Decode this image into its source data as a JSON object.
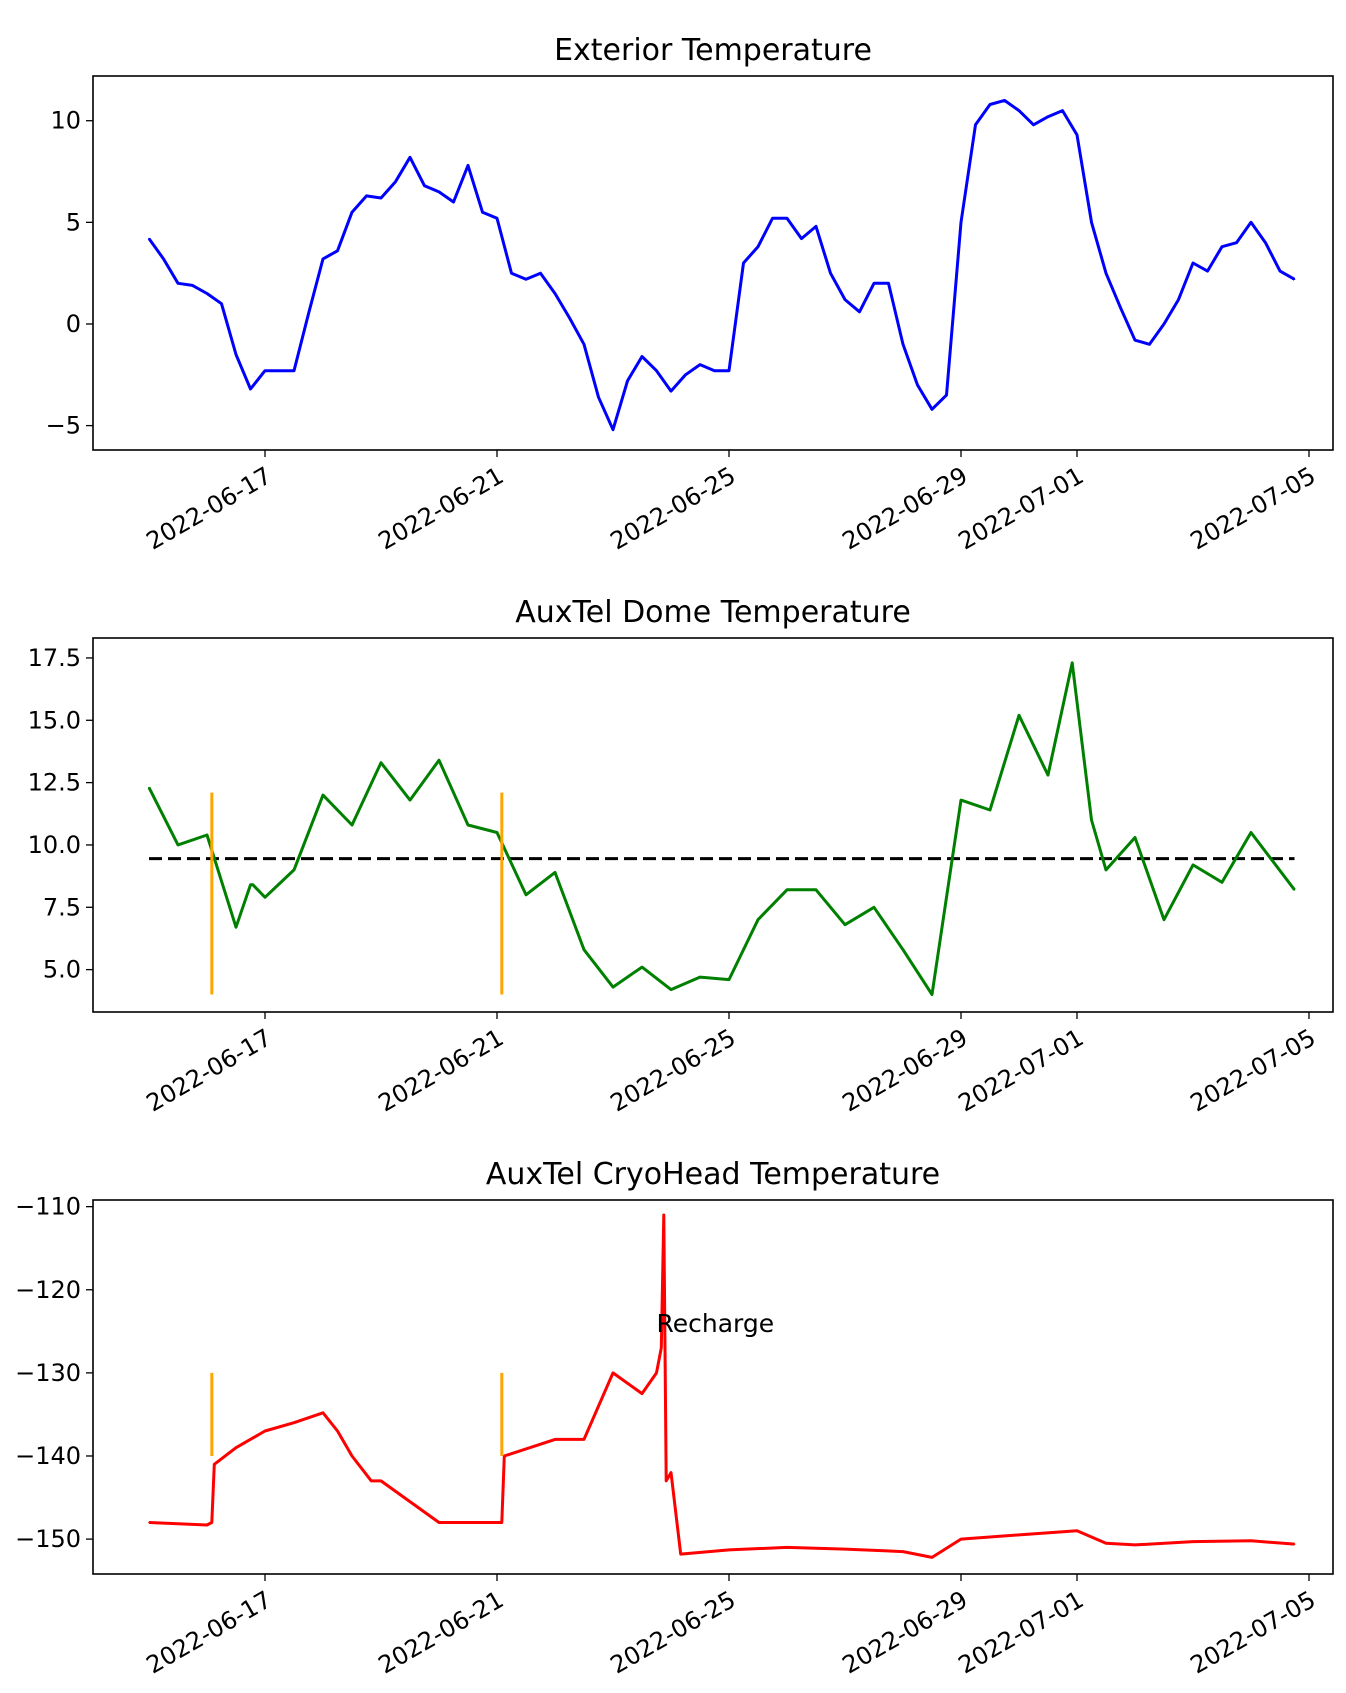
{
  "chart_data": [
    {
      "type": "line",
      "title": "Exterior Temperature",
      "xlabel": "",
      "ylabel": "",
      "x_range": [
        "2022-06-14",
        "2022-07-05"
      ],
      "ylim": [
        -6.2,
        12.2
      ],
      "yticks": [
        -5,
        0,
        5,
        10
      ],
      "ytick_labels": [
        "−5",
        "0",
        "5",
        "10"
      ],
      "xtick_labels": [
        "2022-06-17",
        "2022-06-21",
        "2022-06-25",
        "2022-06-29",
        "2022-07-01",
        "2022-07-05"
      ],
      "series": [
        {
          "color": "#0000ff",
          "x": [
            "2022-06-15 00:00",
            "2022-06-15 06:00",
            "2022-06-15 12:00",
            "2022-06-15 18:00",
            "2022-06-16 00:00",
            "2022-06-16 06:00",
            "2022-06-16 12:00",
            "2022-06-16 18:00",
            "2022-06-17 00:00",
            "2022-06-17 06:00",
            "2022-06-17 12:00",
            "2022-06-17 18:00",
            "2022-06-18 00:00",
            "2022-06-18 06:00",
            "2022-06-18 12:00",
            "2022-06-18 18:00",
            "2022-06-19 00:00",
            "2022-06-19 06:00",
            "2022-06-19 12:00",
            "2022-06-19 18:00",
            "2022-06-20 00:00",
            "2022-06-20 06:00",
            "2022-06-20 12:00",
            "2022-06-20 18:00",
            "2022-06-21 00:00",
            "2022-06-21 06:00",
            "2022-06-21 12:00",
            "2022-06-21 18:00",
            "2022-06-22 00:00",
            "2022-06-22 06:00",
            "2022-06-22 12:00",
            "2022-06-22 18:00",
            "2022-06-23 00:00",
            "2022-06-23 06:00",
            "2022-06-23 12:00",
            "2022-06-23 18:00",
            "2022-06-24 00:00",
            "2022-06-24 06:00",
            "2022-06-24 12:00",
            "2022-06-24 18:00",
            "2022-06-25 00:00",
            "2022-06-25 06:00",
            "2022-06-25 12:00",
            "2022-06-25 18:00",
            "2022-06-26 00:00",
            "2022-06-26 06:00",
            "2022-06-26 12:00",
            "2022-06-26 18:00",
            "2022-06-27 00:00",
            "2022-06-27 06:00",
            "2022-06-27 12:00",
            "2022-06-27 18:00",
            "2022-06-28 00:00",
            "2022-06-28 06:00",
            "2022-06-28 12:00",
            "2022-06-28 18:00",
            "2022-06-29 00:00",
            "2022-06-29 06:00",
            "2022-06-29 12:00",
            "2022-06-29 18:00",
            "2022-06-30 00:00",
            "2022-06-30 06:00",
            "2022-06-30 12:00",
            "2022-06-30 18:00",
            "2022-07-01 00:00",
            "2022-07-01 06:00",
            "2022-07-01 12:00",
            "2022-07-01 18:00",
            "2022-07-02 00:00",
            "2022-07-02 06:00",
            "2022-07-02 12:00",
            "2022-07-02 18:00",
            "2022-07-03 00:00",
            "2022-07-03 06:00",
            "2022-07-03 12:00",
            "2022-07-03 18:00",
            "2022-07-04 00:00",
            "2022-07-04 06:00",
            "2022-07-04 12:00",
            "2022-07-04 18:00"
          ],
          "y": [
            4.2,
            3.2,
            2.0,
            1.9,
            1.5,
            1.0,
            -1.5,
            -3.2,
            -2.3,
            -2.3,
            -2.3,
            0.5,
            3.2,
            3.6,
            5.5,
            6.3,
            6.2,
            7.0,
            8.2,
            6.8,
            6.5,
            6.0,
            7.8,
            5.5,
            5.2,
            2.5,
            2.2,
            2.5,
            1.5,
            0.3,
            -1.0,
            -3.6,
            -5.2,
            -2.8,
            -1.6,
            -2.3,
            -3.3,
            -2.5,
            -2.0,
            -2.3,
            -2.3,
            3.0,
            3.8,
            5.2,
            5.2,
            4.2,
            4.8,
            2.5,
            1.2,
            0.6,
            2.0,
            2.0,
            -1.0,
            -3.0,
            -4.2,
            -3.5,
            5.0,
            9.8,
            10.8,
            11.0,
            10.5,
            9.8,
            10.2,
            10.5,
            9.3,
            5.0,
            2.5,
            0.8,
            -0.8,
            -1.0,
            0.0,
            1.2,
            3.0,
            2.6,
            3.8,
            4.0,
            5.0,
            4.0,
            2.6,
            2.2
          ]
        }
      ]
    },
    {
      "type": "line",
      "title": "AuxTel Dome Temperature",
      "xlabel": "",
      "ylabel": "",
      "x_range": [
        "2022-06-14",
        "2022-07-05"
      ],
      "ylim": [
        3.3,
        18.3
      ],
      "yticks": [
        5.0,
        7.5,
        10.0,
        12.5,
        15.0,
        17.5
      ],
      "ytick_labels": [
        "5.0",
        "7.5",
        "10.0",
        "12.5",
        "15.0",
        "17.5"
      ],
      "xtick_labels": [
        "2022-06-17",
        "2022-06-21",
        "2022-06-25",
        "2022-06-29",
        "2022-07-01",
        "2022-07-05"
      ],
      "reference_line": {
        "y": 9.45,
        "style": "dashed",
        "color": "#000000",
        "x_from": "2022-06-15 00:00",
        "x_to": "2022-07-04 18:00"
      },
      "markers": [
        {
          "x": "2022-06-16 02:00",
          "y_from": 4.0,
          "y_to": 12.1,
          "color": "#ffa500"
        },
        {
          "x": "2022-06-21 02:00",
          "y_from": 4.0,
          "y_to": 12.1,
          "color": "#ffa500"
        }
      ],
      "series": [
        {
          "color": "#008000",
          "x": [
            "2022-06-15 00:00",
            "2022-06-15 12:00",
            "2022-06-16 00:00",
            "2022-06-16 12:00",
            "2022-06-16 18:00",
            "2022-06-16 19:00",
            "2022-06-17 00:00",
            "2022-06-17 12:00",
            "2022-06-18 00:00",
            "2022-06-18 12:00",
            "2022-06-19 00:00",
            "2022-06-19 12:00",
            "2022-06-20 00:00",
            "2022-06-20 12:00",
            "2022-06-21 00:00",
            "2022-06-21 12:00",
            "2022-06-22 00:00",
            "2022-06-22 12:00",
            "2022-06-23 00:00",
            "2022-06-23 12:00",
            "2022-06-24 00:00",
            "2022-06-24 12:00",
            "2022-06-25 00:00",
            "2022-06-25 12:00",
            "2022-06-26 00:00",
            "2022-06-26 12:00",
            "2022-06-27 00:00",
            "2022-06-27 12:00",
            "2022-06-28 00:00",
            "2022-06-28 12:00",
            "2022-06-29 00:00",
            "2022-06-29 12:00",
            "2022-06-30 00:00",
            "2022-06-30 12:00",
            "2022-06-30 22:00",
            "2022-07-01 06:00",
            "2022-07-01 12:00",
            "2022-07-02 00:00",
            "2022-07-02 12:00",
            "2022-07-03 00:00",
            "2022-07-03 12:00",
            "2022-07-04 00:00",
            "2022-07-04 18:00"
          ],
          "y": [
            12.3,
            10.0,
            10.4,
            6.7,
            8.4,
            8.4,
            7.9,
            9.0,
            12.0,
            10.8,
            13.3,
            11.8,
            13.4,
            10.8,
            10.5,
            8.0,
            8.9,
            5.8,
            4.3,
            5.1,
            4.2,
            4.7,
            4.6,
            7.0,
            8.2,
            8.2,
            6.8,
            7.5,
            5.8,
            4.0,
            11.8,
            11.4,
            15.2,
            12.8,
            17.3,
            11.0,
            9.0,
            10.3,
            7.0,
            9.2,
            8.5,
            10.5,
            8.2
          ]
        }
      ]
    },
    {
      "type": "line",
      "title": "AuxTel CryoHead Temperature",
      "xlabel": "",
      "ylabel": "",
      "x_range": [
        "2022-06-14",
        "2022-07-05"
      ],
      "ylim": [
        -154.2,
        -109.2
      ],
      "yticks": [
        -150,
        -140,
        -130,
        -120,
        -110
      ],
      "ytick_labels": [
        "−150",
        "−140",
        "−130",
        "−120",
        "−110"
      ],
      "xtick_labels": [
        "2022-06-17",
        "2022-06-21",
        "2022-06-25",
        "2022-06-29",
        "2022-07-01",
        "2022-07-05"
      ],
      "annotations": [
        {
          "text": "Recharge",
          "x": "2022-06-23 18:00",
          "y": -124
        }
      ],
      "markers": [
        {
          "x": "2022-06-16 02:00",
          "y_from": -140,
          "y_to": -130,
          "color": "#ffa500"
        },
        {
          "x": "2022-06-21 02:00",
          "y_from": -140,
          "y_to": -130,
          "color": "#ffa500"
        }
      ],
      "series": [
        {
          "color": "#ff0000",
          "x": [
            "2022-06-15 00:00",
            "2022-06-16 00:00",
            "2022-06-16 02:00",
            "2022-06-16 03:00",
            "2022-06-16 12:00",
            "2022-06-17 00:00",
            "2022-06-17 12:00",
            "2022-06-18 00:00",
            "2022-06-18 06:00",
            "2022-06-18 12:00",
            "2022-06-18 20:00",
            "2022-06-19 00:00",
            "2022-06-20 00:00",
            "2022-06-21 00:00",
            "2022-06-21 02:00",
            "2022-06-21 03:00",
            "2022-06-22 00:00",
            "2022-06-22 12:00",
            "2022-06-23 00:00",
            "2022-06-23 12:00",
            "2022-06-23 18:00",
            "2022-06-23 20:00",
            "2022-06-23 21:00",
            "2022-06-23 22:00",
            "2022-06-24 00:00",
            "2022-06-24 04:00",
            "2022-06-25 00:00",
            "2022-06-26 00:00",
            "2022-06-27 00:00",
            "2022-06-28 00:00",
            "2022-06-28 12:00",
            "2022-06-29 00:00",
            "2022-06-30 00:00",
            "2022-07-01 00:00",
            "2022-07-01 12:00",
            "2022-07-02 00:00",
            "2022-07-03 00:00",
            "2022-07-04 00:00",
            "2022-07-04 18:00"
          ],
          "y": [
            -148,
            -148.3,
            -148,
            -141,
            -139,
            -137,
            -136,
            -134.8,
            -137,
            -140,
            -143,
            -143,
            -148,
            -148,
            -148,
            -140,
            -138,
            -138,
            -130,
            -132.5,
            -130,
            -127,
            -111,
            -143,
            -142,
            -151.8,
            -151.3,
            -151,
            -151.2,
            -151.5,
            -152.2,
            -150,
            -149.5,
            -149,
            -150.5,
            -150.7,
            -150.3,
            -150.2,
            -150.6
          ]
        }
      ]
    }
  ]
}
